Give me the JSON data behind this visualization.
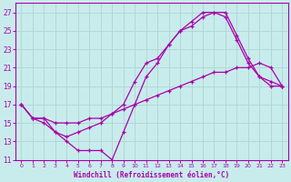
{
  "xlabel": "Windchill (Refroidissement éolien,°C)",
  "background_color": "#c8ecec",
  "grid_color": "#b0d8d8",
  "line_color": "#aa00aa",
  "xlim": [
    -0.5,
    23.5
  ],
  "ylim": [
    11,
    28
  ],
  "xticks": [
    0,
    1,
    2,
    3,
    4,
    5,
    6,
    7,
    8,
    9,
    10,
    11,
    12,
    13,
    14,
    15,
    16,
    17,
    18,
    19,
    20,
    21,
    22,
    23
  ],
  "yticks": [
    11,
    13,
    15,
    17,
    19,
    21,
    23,
    25,
    27
  ],
  "lines": [
    {
      "x": [
        0,
        1,
        2,
        3,
        4,
        5,
        6,
        7,
        8,
        9,
        10,
        11,
        12,
        13,
        14,
        15,
        16,
        17,
        18,
        19,
        20,
        21,
        22,
        23
      ],
      "y": [
        17,
        15.5,
        15.5,
        15,
        15,
        15,
        15.5,
        15.5,
        16,
        16.5,
        17,
        17.5,
        18,
        18.5,
        19,
        19.5,
        20,
        20.5,
        20.5,
        21,
        21,
        21.5,
        21,
        19
      ]
    },
    {
      "x": [
        0,
        1,
        2,
        3,
        4,
        5,
        6,
        7,
        8,
        9,
        10,
        11,
        12,
        13,
        14,
        15,
        16,
        17,
        18,
        19,
        20,
        21,
        22,
        23
      ],
      "y": [
        17,
        15.5,
        15,
        14,
        13.5,
        14,
        14.5,
        15,
        16,
        17,
        19.5,
        21.5,
        22,
        23.5,
        25,
        25.5,
        26.5,
        27,
        27,
        24.5,
        22,
        20,
        19.5,
        19
      ]
    },
    {
      "x": [
        0,
        1,
        2,
        3,
        4,
        5,
        6,
        7,
        8,
        9,
        10,
        11,
        12,
        13,
        14,
        15,
        16,
        17,
        18,
        19,
        20,
        21,
        22,
        23
      ],
      "y": [
        17,
        15.5,
        15.5,
        14,
        13,
        12,
        12,
        12,
        11,
        14,
        17,
        20,
        21.5,
        23.5,
        25,
        26,
        27,
        27,
        26.5,
        24,
        21.5,
        20,
        19,
        19
      ]
    }
  ]
}
